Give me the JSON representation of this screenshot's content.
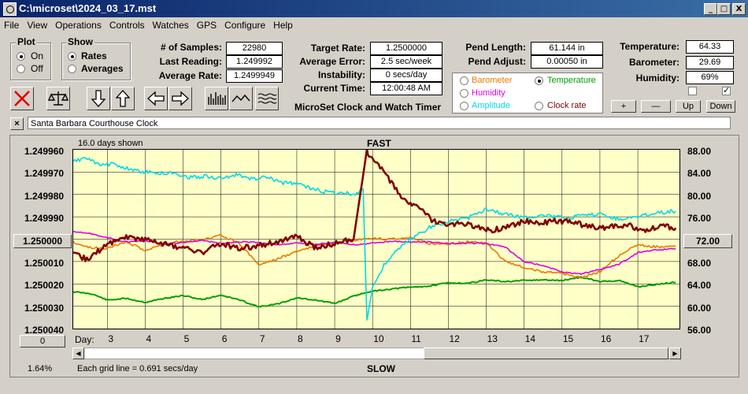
{
  "window": {
    "title": "C:\\microset\\2024_03_17.mst",
    "min_label": "_",
    "max_label": "□",
    "close_label": "X"
  },
  "menu": [
    "File",
    "View",
    "Operations",
    "Controls",
    "Watches",
    "GPS",
    "Configure",
    "Help"
  ],
  "plot_group": {
    "title": "Plot",
    "options": [
      "On",
      "Off"
    ],
    "selected": "On"
  },
  "show_group": {
    "title": "Show",
    "options": [
      "Rates",
      "Averages"
    ],
    "selected": "Rates"
  },
  "stats": {
    "samples_label": "# of Samples:",
    "samples": "22980",
    "last_reading_label": "Last Reading:",
    "last_reading": "1.249992",
    "average_rate_label": "Average Rate:",
    "average_rate": "1.2499949",
    "target_rate_label": "Target Rate:",
    "target_rate": "1.2500000",
    "average_error_label": "Average Error:",
    "average_error": "2.5 sec/week",
    "instability_label": "Instability:",
    "instability": "0 secs/day",
    "current_time_label": "Current Time:",
    "current_time": "12:00:48 AM",
    "pend_length_label": "Pend Length:",
    "pend_length": "61.144 in",
    "pend_adjust_label": "Pend Adjust:",
    "pend_adjust": "0.00050 in",
    "temperature_label": "Temperature:",
    "temperature": "64.33",
    "barometer_label": "Barometer:",
    "barometer": "29.69",
    "humidity_label": "Humidity:",
    "humidity": "69%"
  },
  "app_caption": "MicroSet Clock and Watch Timer",
  "sensor_select": {
    "options": [
      {
        "label": "Barometer",
        "color": "#e87a00",
        "selected": false
      },
      {
        "label": "Temperature",
        "color": "#00a000",
        "selected": true
      },
      {
        "label": "Humidity",
        "color": "#e000e0",
        "selected": false
      },
      {
        "label": "Clock rate",
        "color": "#800000",
        "selected": false
      },
      {
        "label": "Amplitude",
        "color": "#00d8e8",
        "selected": false
      }
    ]
  },
  "scale_buttons": {
    "plus": "+",
    "minus": "—",
    "up": "Up",
    "down": "Down"
  },
  "clock_name": "Santa Barbara Courthouse Clock",
  "clear_button": "×",
  "chart": {
    "days_shown": "16.0 days shown",
    "top_label": "FAST",
    "bottom_label": "SLOW",
    "left_axis": [
      "1.249960",
      "1.249970",
      "1.249980",
      "1.249990",
      "1.250000",
      "1.250010",
      "1.250020",
      "1.250030",
      "1.250040"
    ],
    "right_axis": [
      "88.00",
      "84.00",
      "80.00",
      "76.00",
      "72.00",
      "68.00",
      "64.00",
      "60.00",
      "56.00"
    ],
    "day_label": "Day:",
    "days": [
      "3",
      "4",
      "5",
      "6",
      "7",
      "8",
      "9",
      "10",
      "11",
      "12",
      "13",
      "14",
      "15",
      "16",
      "17"
    ],
    "grid_note": "Each grid line = 0.691 secs/day",
    "zoom_value": "0",
    "percent": "1.64%"
  },
  "chart_data": {
    "type": "line",
    "xlabel": "Day:",
    "x_ticks": [
      3,
      4,
      5,
      6,
      7,
      8,
      9,
      10,
      11,
      12,
      13,
      14,
      15,
      16,
      17
    ],
    "xlim": [
      2.1,
      18.1
    ],
    "ylim_left": [
      1.24996,
      1.25004
    ],
    "ylim_right": [
      56,
      88
    ],
    "series": [
      {
        "name": "Clock rate",
        "color": "#800000",
        "axis": "left",
        "x": [
          2.1,
          2.5,
          3,
          3.5,
          4,
          4.5,
          5,
          5.5,
          6,
          6.5,
          7,
          7.5,
          8,
          8.5,
          9,
          9.5,
          9.85,
          9.9,
          10.2,
          10.5,
          10.8,
          11.2,
          11.6,
          12,
          12.4,
          12.8,
          13.2,
          13.6,
          14,
          14.4,
          14.8,
          15.2,
          15.6,
          16,
          16.4,
          16.8,
          17.2,
          17.6,
          18
        ],
        "y": [
          1.250007,
          1.250009,
          1.250002,
          1.249999,
          1.25,
          1.250002,
          1.250004,
          1.250006,
          1.250002,
          1.250004,
          1.250003,
          1.250001,
          1.249999,
          1.250004,
          1.250002,
          1.25,
          1.24996,
          1.249962,
          1.249968,
          1.249975,
          1.249982,
          1.249986,
          1.249992,
          1.249994,
          1.249993,
          1.249995,
          1.249996,
          1.249994,
          1.249992,
          1.249993,
          1.249992,
          1.249992,
          1.249994,
          1.249995,
          1.249994,
          1.249994,
          1.249996,
          1.249994,
          1.249995
        ]
      },
      {
        "name": "Temperature",
        "color": "#00a000",
        "axis": "right",
        "x": [
          2.1,
          2.6,
          3,
          3.5,
          4,
          4.5,
          5,
          5.5,
          6,
          6.5,
          7,
          7.5,
          8,
          8.5,
          9,
          9.5,
          9.9,
          10.5,
          11,
          11.5,
          12,
          12.5,
          13,
          13.5,
          14,
          14.5,
          15,
          15.5,
          16,
          16.5,
          17,
          17.5,
          18
        ],
        "y": [
          62.6,
          62.2,
          61.1,
          61.4,
          60.7,
          61.4,
          61.9,
          61.2,
          62.0,
          61.1,
          59.9,
          60.4,
          61.5,
          61.1,
          60.5,
          61.8,
          62.6,
          63.1,
          63.4,
          63.6,
          64.2,
          64.1,
          64.7,
          64.4,
          64.6,
          64.7,
          64.6,
          65.2,
          64.4,
          64.6,
          63.5,
          63.9,
          64.3
        ]
      },
      {
        "name": "Amplitude",
        "color": "#00d8e8",
        "axis": "right",
        "x": [
          2.1,
          2.4,
          2.8,
          3.2,
          3.6,
          4,
          4.4,
          4.8,
          5.2,
          5.6,
          6,
          6.4,
          6.8,
          7.2,
          7.6,
          8,
          8.4,
          8.8,
          9.2,
          9.5,
          9.75,
          9.85,
          10,
          10.3,
          10.6,
          11,
          11.5,
          12,
          12.5,
          13,
          13.5,
          14,
          14.5,
          15,
          15.5,
          16,
          16.5,
          17,
          17.5,
          18
        ],
        "y": [
          85.8,
          86.6,
          85.2,
          85.5,
          84.4,
          84.0,
          83.8,
          83.8,
          83.0,
          83.3,
          82.8,
          83.5,
          82.8,
          83.1,
          82.1,
          82.0,
          81.0,
          80.4,
          80.3,
          80.0,
          81.0,
          57.6,
          63.4,
          67.3,
          69.7,
          72.0,
          74.1,
          75.2,
          75.7,
          77.4,
          76.5,
          75.9,
          76.3,
          75.8,
          76.1,
          76.5,
          75.6,
          76.0,
          76.8,
          77.0
        ]
      },
      {
        "name": "Barometer",
        "color": "#e87a00",
        "axis": "right",
        "x": [
          2.1,
          2.5,
          3,
          3.5,
          4,
          4.5,
          5,
          5.5,
          6,
          6.5,
          7,
          7.5,
          8,
          8.5,
          9,
          9.5,
          9.9,
          10.5,
          11,
          11.5,
          12,
          12.5,
          13,
          13.5,
          14,
          14.5,
          15,
          15.5,
          16,
          16.5,
          17,
          17.5,
          18
        ],
        "y": [
          71.5,
          70.5,
          70.4,
          71.5,
          70.0,
          71.1,
          71.7,
          71.8,
          72.8,
          71.1,
          67.4,
          68.5,
          69.8,
          70.8,
          71.2,
          71.8,
          72.1,
          72.0,
          72.3,
          71.2,
          71.2,
          71.5,
          71.4,
          68.0,
          66.9,
          66.2,
          65.8,
          65.1,
          66.2,
          69.0,
          71.0,
          70.6,
          70.7
        ]
      },
      {
        "name": "Humidity",
        "color": "#e000e0",
        "axis": "right",
        "x": [
          2.1,
          2.5,
          3,
          3.5,
          4,
          4.5,
          5,
          5.5,
          6,
          6.5,
          7,
          7.5,
          8,
          8.5,
          9,
          9.5,
          9.9,
          10.5,
          11,
          11.5,
          12,
          12.5,
          13,
          13.5,
          14,
          14.5,
          15,
          15.5,
          16,
          16.5,
          17,
          17.5,
          18
        ],
        "y": [
          73.4,
          73.1,
          72.3,
          71.5,
          71.7,
          71.1,
          71.4,
          71.8,
          71.2,
          71.5,
          71.4,
          71.0,
          71.3,
          71.1,
          71.4,
          71.0,
          71.2,
          71.6,
          71.5,
          71.5,
          71.2,
          71.3,
          71.2,
          70.6,
          67.9,
          67.3,
          66.1,
          65.8,
          66.6,
          67.5,
          69.6,
          70.1,
          70.3
        ]
      }
    ]
  }
}
